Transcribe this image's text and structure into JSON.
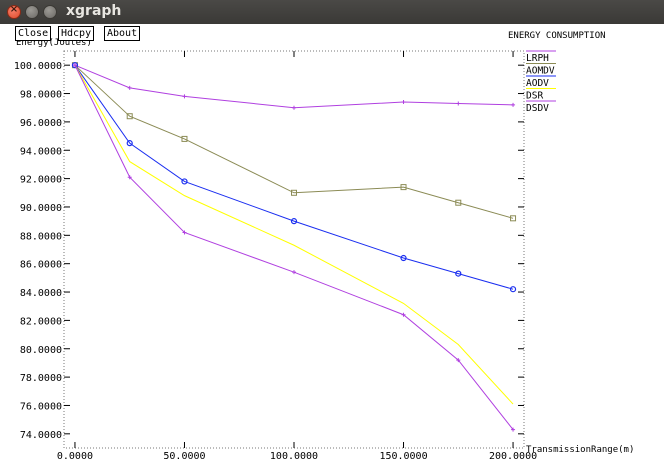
{
  "window": {
    "title": "xgraph"
  },
  "toolbar": {
    "close_label": "Close",
    "hdcpy_label": "Hdcpy",
    "about_label": "About"
  },
  "plot_title": "ENERGY CONSUMPTION",
  "chart_data": {
    "type": "line",
    "title": "ENERGY CONSUMPTION",
    "xlabel": "TransmissionRange(m)",
    "ylabel": "Energy(Joules)",
    "xlim": [
      -5,
      205
    ],
    "ylim": [
      73,
      101
    ],
    "x_ticks": [
      0,
      50,
      100,
      150,
      200
    ],
    "x_tick_labels": [
      "0.0000",
      "50.0000",
      "100.0000",
      "150.0000",
      "200.0000"
    ],
    "y_ticks": [
      74,
      76,
      78,
      80,
      82,
      84,
      86,
      88,
      90,
      92,
      94,
      96,
      98,
      100
    ],
    "y_tick_labels": [
      "74.0000",
      "76.0000",
      "78.0000",
      "80.0000",
      "82.0000",
      "84.0000",
      "86.0000",
      "88.0000",
      "90.0000",
      "92.0000",
      "94.0000",
      "96.0000",
      "98.0000",
      "100.0000"
    ],
    "grid": "dotted-edges",
    "legend_position": "right",
    "series": [
      {
        "name": "LRPH",
        "color": "#b040e0",
        "marker": "plus",
        "x": [
          0,
          25,
          50,
          100,
          150,
          175,
          200
        ],
        "values": [
          100.0,
          98.4,
          97.8,
          97.0,
          97.4,
          97.3,
          97.2
        ]
      },
      {
        "name": "AOMDV",
        "color": "#8b8b55",
        "marker": "square",
        "x": [
          0,
          25,
          50,
          100,
          150,
          175,
          200
        ],
        "values": [
          100.0,
          96.4,
          94.8,
          91.0,
          91.4,
          90.3,
          89.2
        ]
      },
      {
        "name": "AODV",
        "color": "#1a2ef0",
        "marker": "circle",
        "x": [
          0,
          25,
          50,
          100,
          150,
          175,
          200
        ],
        "values": [
          100.0,
          94.5,
          91.8,
          89.0,
          86.4,
          85.3,
          84.2
        ]
      },
      {
        "name": "DSR",
        "color": "#ffff00",
        "marker": "none",
        "x": [
          0,
          25,
          50,
          100,
          150,
          175,
          200
        ],
        "values": [
          100.0,
          93.2,
          90.8,
          87.3,
          83.2,
          80.3,
          76.1
        ]
      },
      {
        "name": "DSDV",
        "color": "#b040e0",
        "marker": "plus",
        "x": [
          0,
          25,
          50,
          100,
          150,
          175,
          200
        ],
        "values": [
          100.0,
          92.1,
          88.2,
          85.4,
          82.4,
          79.2,
          74.3
        ]
      }
    ]
  }
}
